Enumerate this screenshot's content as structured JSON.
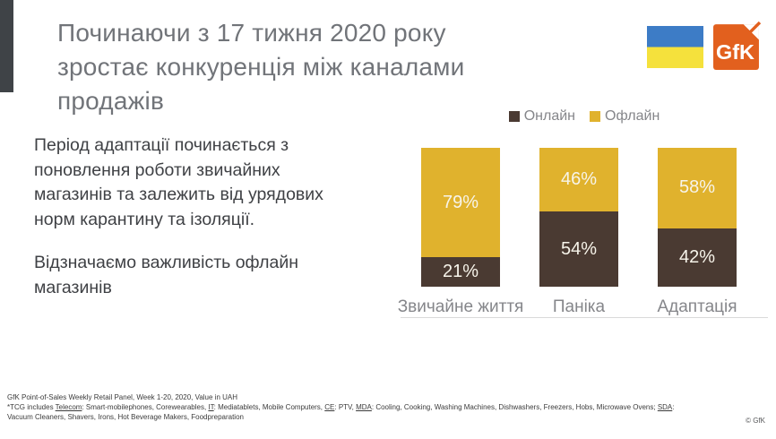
{
  "slide": {
    "title_lines": [
      "Починаючи з 17 тижня 2020 року",
      "зростає конкуренція між каналами",
      "продажів"
    ],
    "paragraphs": [
      "Період адаптації починається з поновлення роботи звичайних магазинів та залежить від урядових норм карантину та ізоляції.",
      "Відзначаємо важливість офлайн магазинів"
    ]
  },
  "branding": {
    "logo_text": "GfK",
    "flag_icon": "ukraine-flag"
  },
  "colors": {
    "online": "#4A3A32",
    "offline": "#E0B22D",
    "gfk_orange": "#E2601E",
    "flag_blue": "#3D7CC6",
    "flag_yellow": "#F5E13C",
    "accent_bar": "#3F4347",
    "title_text": "#717479",
    "body_text": "#3F4145",
    "muted_text": "#85868A",
    "axis_line": "#D9D9D9",
    "bar_label": "#F7F4EA"
  },
  "chart_data": {
    "type": "bar",
    "stacked": true,
    "unit": "%",
    "title": "",
    "categories": [
      "Звичайне життя",
      "Паніка",
      "Адаптація"
    ],
    "series": [
      {
        "name": "Онлайн",
        "color": "#4A3A32",
        "values": [
          21,
          54,
          42
        ]
      },
      {
        "name": "Офлайн",
        "color": "#E0B22D",
        "values": [
          79,
          46,
          58
        ]
      }
    ],
    "value_labels": [
      "21%",
      "54%",
      "42%",
      "79%",
      "46%",
      "58%"
    ],
    "ylim": [
      0,
      100
    ],
    "legend_position": "top",
    "grid": false
  },
  "footer": {
    "source": "GfK Point-of-Sales Weekly Retail Panel, Week 1-20, 2020, Value in UAH",
    "footnote_segments": [
      {
        "t": "*TCG includes ",
        "u": false
      },
      {
        "t": "Telecom",
        "u": true
      },
      {
        "t": ": Smart-mobilephones, Corewearables,  ",
        "u": false
      },
      {
        "t": "IT",
        "u": true
      },
      {
        "t": ": Mediatablets, Mobile Computers, ",
        "u": false
      },
      {
        "t": "CE",
        "u": true
      },
      {
        "t": ": PTV,  ",
        "u": false
      },
      {
        "t": "MDA",
        "u": true
      },
      {
        "t": ": Cooling, Cooking, Washing Machines, Dishwashers,  Freezers,  Hobs, Microwave Ovens; ",
        "u": false
      },
      {
        "t": "SDA",
        "u": true
      },
      {
        "t": ": Vacuum Cleaners, Shavers, Irons, Hot Beverage Makers,  Foodpreparation",
        "u": false
      }
    ],
    "copyright": "© GfK"
  }
}
